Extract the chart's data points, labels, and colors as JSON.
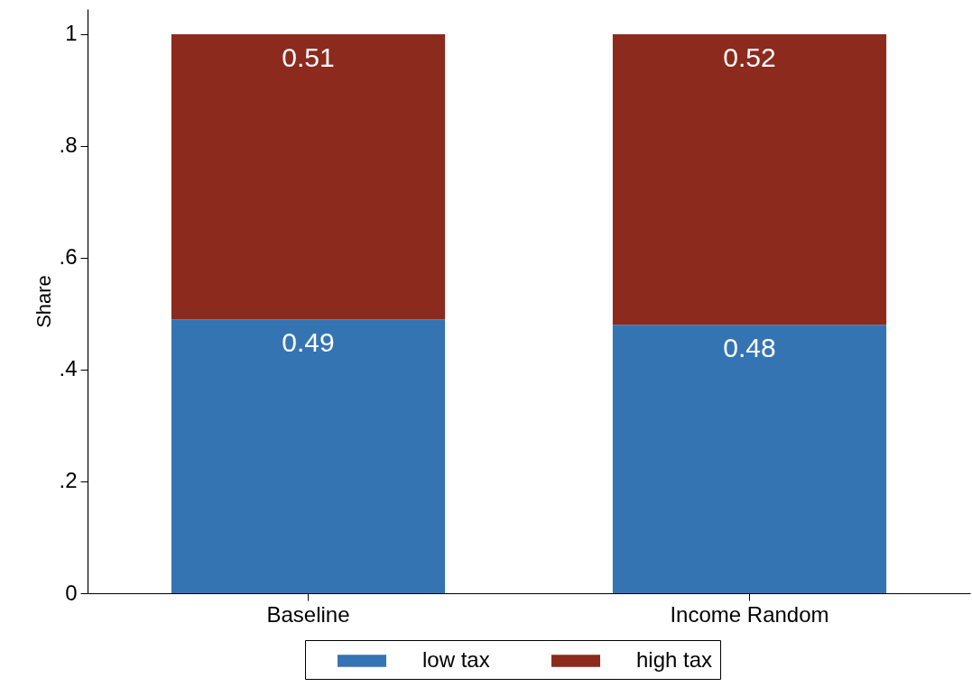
{
  "chart_data": {
    "type": "bar",
    "stacked": true,
    "ylabel": "Share",
    "categories": [
      "Baseline",
      "Income Random"
    ],
    "series": [
      {
        "name": "low tax",
        "color": "#3574b3",
        "values": [
          0.49,
          0.48
        ]
      },
      {
        "name": "high tax",
        "color": "#8c2a1e",
        "values": [
          0.51,
          0.52
        ]
      }
    ],
    "ylim": [
      0,
      1.045
    ],
    "yticks": [
      0,
      {
        "value": 0.2,
        "label": ".2"
      },
      {
        "value": 0.4,
        "label": ".4"
      },
      {
        "value": 0.6,
        "label": ".6"
      },
      {
        "value": 0.8,
        "label": ".8"
      },
      1
    ],
    "data_labels": true,
    "legend": "bottom",
    "grid": false
  }
}
